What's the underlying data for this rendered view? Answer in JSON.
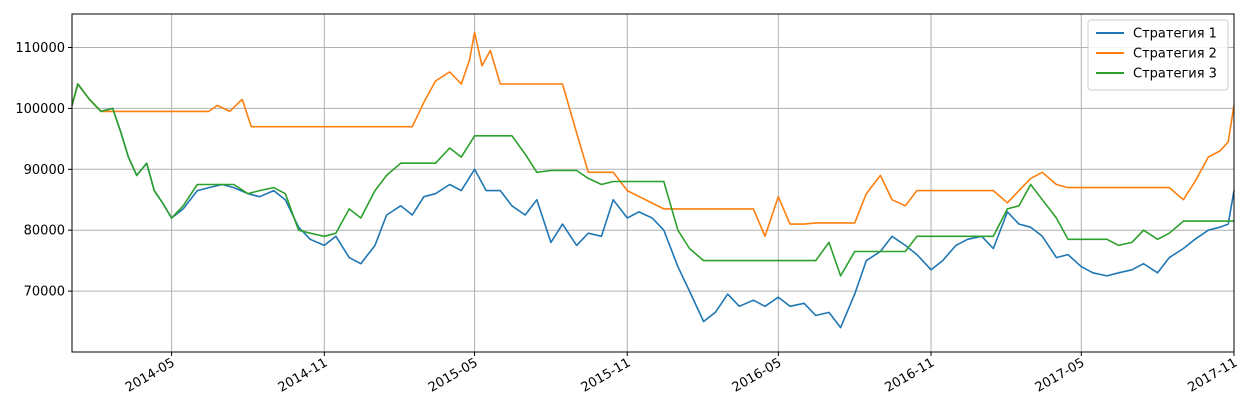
{
  "chart_data": {
    "type": "line",
    "title": "",
    "xlabel": "",
    "ylabel": "",
    "grid": true,
    "legend_position": "top-right",
    "xlim": [
      "2014-01-01",
      "2017-11-01"
    ],
    "ylim": [
      60000,
      115500
    ],
    "x_ticks": [
      "2014-05",
      "2014-11",
      "2015-05",
      "2015-11",
      "2016-05",
      "2016-11",
      "2017-05",
      "2017-11"
    ],
    "y_ticks": [
      70000,
      80000,
      90000,
      100000,
      110000
    ],
    "series": [
      {
        "name": "Стратегия 1",
        "color": "#1f77b4",
        "points": [
          [
            "2014-01-01",
            100500
          ],
          [
            "2014-01-08",
            104000
          ],
          [
            "2014-01-22",
            101500
          ],
          [
            "2014-02-05",
            99500
          ],
          [
            "2014-02-19",
            100000
          ],
          [
            "2014-03-01",
            96000
          ],
          [
            "2014-03-10",
            92000
          ],
          [
            "2014-03-20",
            89000
          ],
          [
            "2014-04-01",
            91000
          ],
          [
            "2014-04-10",
            86500
          ],
          [
            "2014-04-20",
            84500
          ],
          [
            "2014-05-01",
            82000
          ],
          [
            "2014-05-15",
            83500
          ],
          [
            "2014-06-01",
            86500
          ],
          [
            "2014-06-15",
            87000
          ],
          [
            "2014-07-01",
            87500
          ],
          [
            "2014-07-15",
            87000
          ],
          [
            "2014-08-01",
            86000
          ],
          [
            "2014-08-15",
            85500
          ],
          [
            "2014-09-01",
            86500
          ],
          [
            "2014-09-15",
            85000
          ],
          [
            "2014-10-01",
            80500
          ],
          [
            "2014-10-15",
            78500
          ],
          [
            "2014-11-01",
            77500
          ],
          [
            "2014-11-15",
            79000
          ],
          [
            "2014-12-01",
            75500
          ],
          [
            "2014-12-15",
            74500
          ],
          [
            "2015-01-01",
            77500
          ],
          [
            "2015-01-15",
            82500
          ],
          [
            "2015-02-01",
            84000
          ],
          [
            "2015-02-15",
            82500
          ],
          [
            "2015-03-01",
            85500
          ],
          [
            "2015-03-15",
            86000
          ],
          [
            "2015-04-01",
            87500
          ],
          [
            "2015-04-15",
            86500
          ],
          [
            "2015-05-01",
            90000
          ],
          [
            "2015-05-15",
            86500
          ],
          [
            "2015-06-01",
            86500
          ],
          [
            "2015-06-15",
            84000
          ],
          [
            "2015-07-01",
            82500
          ],
          [
            "2015-07-15",
            85000
          ],
          [
            "2015-08-01",
            78000
          ],
          [
            "2015-08-15",
            81000
          ],
          [
            "2015-09-01",
            77500
          ],
          [
            "2015-09-15",
            79500
          ],
          [
            "2015-10-01",
            79000
          ],
          [
            "2015-10-15",
            85000
          ],
          [
            "2015-11-01",
            82000
          ],
          [
            "2015-11-15",
            83000
          ],
          [
            "2015-12-01",
            82000
          ],
          [
            "2015-12-15",
            80000
          ],
          [
            "2016-01-01",
            74000
          ],
          [
            "2016-01-15",
            70000
          ],
          [
            "2016-02-01",
            65000
          ],
          [
            "2016-02-15",
            66500
          ],
          [
            "2016-03-01",
            69500
          ],
          [
            "2016-03-15",
            67500
          ],
          [
            "2016-04-01",
            68500
          ],
          [
            "2016-04-15",
            67500
          ],
          [
            "2016-05-01",
            69000
          ],
          [
            "2016-05-15",
            67500
          ],
          [
            "2016-06-01",
            68000
          ],
          [
            "2016-06-15",
            66000
          ],
          [
            "2016-07-01",
            66500
          ],
          [
            "2016-07-15",
            64000
          ],
          [
            "2016-08-01",
            69500
          ],
          [
            "2016-08-15",
            75000
          ],
          [
            "2016-09-01",
            76500
          ],
          [
            "2016-09-15",
            79000
          ],
          [
            "2016-10-01",
            77500
          ],
          [
            "2016-10-15",
            76000
          ],
          [
            "2016-11-01",
            73500
          ],
          [
            "2016-11-15",
            75000
          ],
          [
            "2016-12-01",
            77500
          ],
          [
            "2016-12-15",
            78500
          ],
          [
            "2017-01-01",
            79000
          ],
          [
            "2017-01-15",
            77000
          ],
          [
            "2017-02-01",
            83000
          ],
          [
            "2017-02-15",
            81000
          ],
          [
            "2017-03-01",
            80500
          ],
          [
            "2017-03-15",
            79000
          ],
          [
            "2017-04-01",
            75500
          ],
          [
            "2017-04-15",
            76000
          ],
          [
            "2017-05-01",
            74000
          ],
          [
            "2017-05-15",
            73000
          ],
          [
            "2017-06-01",
            72500
          ],
          [
            "2017-06-15",
            73000
          ],
          [
            "2017-07-01",
            73500
          ],
          [
            "2017-07-15",
            74500
          ],
          [
            "2017-08-01",
            73000
          ],
          [
            "2017-08-15",
            75500
          ],
          [
            "2017-09-01",
            77000
          ],
          [
            "2017-09-15",
            78500
          ],
          [
            "2017-10-01",
            80000
          ],
          [
            "2017-10-15",
            80500
          ],
          [
            "2017-10-25",
            81000
          ],
          [
            "2017-11-01",
            86500
          ]
        ]
      },
      {
        "name": "Стратегия 2",
        "color": "#ff7f0e",
        "points": [
          [
            "2014-01-01",
            100500
          ],
          [
            "2014-01-08",
            104000
          ],
          [
            "2014-01-22",
            101500
          ],
          [
            "2014-02-05",
            99500
          ],
          [
            "2014-04-01",
            99500
          ],
          [
            "2014-06-15",
            99500
          ],
          [
            "2014-06-25",
            100500
          ],
          [
            "2014-07-10",
            99500
          ],
          [
            "2014-07-25",
            101500
          ],
          [
            "2014-08-05",
            97000
          ],
          [
            "2014-09-15",
            97000
          ],
          [
            "2015-02-15",
            97000
          ],
          [
            "2015-03-01",
            101000
          ],
          [
            "2015-03-15",
            104500
          ],
          [
            "2015-04-01",
            106000
          ],
          [
            "2015-04-15",
            104000
          ],
          [
            "2015-04-25",
            108000
          ],
          [
            "2015-05-01",
            112500
          ],
          [
            "2015-05-10",
            107000
          ],
          [
            "2015-05-20",
            109500
          ],
          [
            "2015-06-01",
            104000
          ],
          [
            "2015-08-15",
            104000
          ],
          [
            "2015-09-01",
            96000
          ],
          [
            "2015-09-15",
            89500
          ],
          [
            "2015-10-15",
            89500
          ],
          [
            "2015-11-01",
            86500
          ],
          [
            "2015-12-15",
            83500
          ],
          [
            "2016-01-15",
            83500
          ],
          [
            "2016-04-01",
            83500
          ],
          [
            "2016-04-15",
            79000
          ],
          [
            "2016-05-01",
            85500
          ],
          [
            "2016-05-15",
            81000
          ],
          [
            "2016-06-01",
            81000
          ],
          [
            "2016-06-15",
            81200
          ],
          [
            "2016-08-01",
            81200
          ],
          [
            "2016-08-15",
            86000
          ],
          [
            "2016-09-01",
            89000
          ],
          [
            "2016-09-15",
            85000
          ],
          [
            "2016-10-01",
            84000
          ],
          [
            "2016-10-15",
            86500
          ],
          [
            "2016-12-15",
            86500
          ],
          [
            "2017-01-15",
            86500
          ],
          [
            "2017-02-01",
            84500
          ],
          [
            "2017-02-15",
            86500
          ],
          [
            "2017-03-01",
            88500
          ],
          [
            "2017-03-15",
            89500
          ],
          [
            "2017-04-01",
            87500
          ],
          [
            "2017-04-15",
            87000
          ],
          [
            "2017-08-15",
            87000
          ],
          [
            "2017-09-01",
            85000
          ],
          [
            "2017-09-15",
            88000
          ],
          [
            "2017-10-01",
            92000
          ],
          [
            "2017-10-15",
            93000
          ],
          [
            "2017-10-25",
            94500
          ],
          [
            "2017-11-01",
            100500
          ]
        ]
      },
      {
        "name": "Стратегия 3",
        "color": "#2ca02c",
        "points": [
          [
            "2014-01-01",
            100500
          ],
          [
            "2014-01-08",
            104000
          ],
          [
            "2014-01-22",
            101500
          ],
          [
            "2014-02-05",
            99500
          ],
          [
            "2014-02-19",
            100000
          ],
          [
            "2014-03-01",
            96000
          ],
          [
            "2014-03-10",
            92000
          ],
          [
            "2014-03-20",
            89000
          ],
          [
            "2014-04-01",
            91000
          ],
          [
            "2014-04-10",
            86500
          ],
          [
            "2014-04-20",
            84500
          ],
          [
            "2014-05-01",
            82000
          ],
          [
            "2014-05-15",
            84000
          ],
          [
            "2014-06-01",
            87500
          ],
          [
            "2014-07-15",
            87500
          ],
          [
            "2014-08-01",
            86000
          ],
          [
            "2014-08-15",
            86500
          ],
          [
            "2014-09-01",
            87000
          ],
          [
            "2014-09-15",
            86000
          ],
          [
            "2014-10-01",
            80000
          ],
          [
            "2014-10-15",
            79500
          ],
          [
            "2014-11-01",
            79000
          ],
          [
            "2014-11-15",
            79500
          ],
          [
            "2014-12-01",
            83500
          ],
          [
            "2014-12-15",
            82000
          ],
          [
            "2015-01-01",
            86500
          ],
          [
            "2015-01-15",
            89000
          ],
          [
            "2015-02-01",
            91000
          ],
          [
            "2015-03-15",
            91000
          ],
          [
            "2015-04-01",
            93500
          ],
          [
            "2015-04-15",
            92000
          ],
          [
            "2015-05-01",
            95500
          ],
          [
            "2015-06-15",
            95500
          ],
          [
            "2015-07-01",
            92500
          ],
          [
            "2015-07-15",
            89500
          ],
          [
            "2015-08-01",
            89800
          ],
          [
            "2015-09-01",
            89800
          ],
          [
            "2015-09-15",
            88500
          ],
          [
            "2015-10-01",
            87500
          ],
          [
            "2015-10-15",
            88000
          ],
          [
            "2015-12-15",
            88000
          ],
          [
            "2016-01-01",
            80000
          ],
          [
            "2016-01-15",
            77000
          ],
          [
            "2016-02-01",
            75000
          ],
          [
            "2016-06-15",
            75000
          ],
          [
            "2016-07-01",
            78000
          ],
          [
            "2016-07-15",
            72500
          ],
          [
            "2016-08-01",
            76500
          ],
          [
            "2016-10-01",
            76500
          ],
          [
            "2016-10-15",
            79000
          ],
          [
            "2017-01-15",
            79000
          ],
          [
            "2017-02-01",
            83500
          ],
          [
            "2017-02-15",
            84000
          ],
          [
            "2017-03-01",
            87500
          ],
          [
            "2017-03-15",
            85000
          ],
          [
            "2017-04-01",
            82000
          ],
          [
            "2017-04-15",
            78500
          ],
          [
            "2017-05-01",
            78500
          ],
          [
            "2017-06-01",
            78500
          ],
          [
            "2017-06-15",
            77500
          ],
          [
            "2017-07-01",
            78000
          ],
          [
            "2017-07-15",
            80000
          ],
          [
            "2017-08-01",
            78500
          ],
          [
            "2017-08-15",
            79500
          ],
          [
            "2017-09-01",
            81500
          ],
          [
            "2017-11-01",
            81500
          ]
        ]
      }
    ]
  }
}
